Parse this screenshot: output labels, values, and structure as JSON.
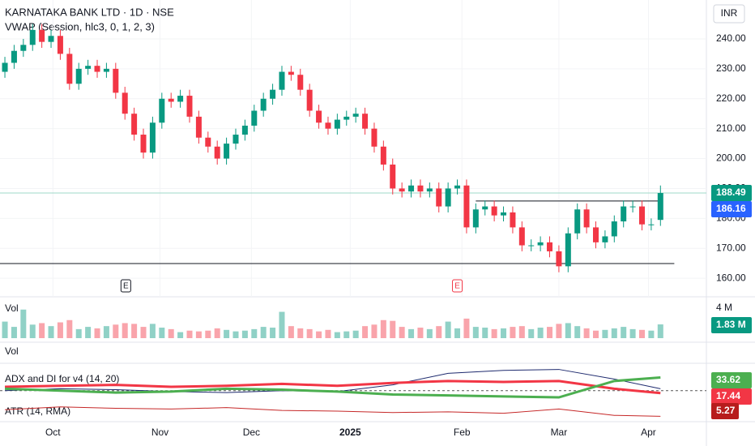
{
  "chart_data": {
    "type": "candlestick",
    "title": "KARNATAKA BANK LTD · 1D · NSE",
    "subtitle": "VWAP (Session, hlc3, 0, 1, 2, 3)",
    "currency": "INR",
    "up_color": "#089981",
    "down_color": "#f23645",
    "open": [
      229,
      232,
      236,
      238,
      243,
      239,
      241,
      235,
      225,
      230,
      231,
      229,
      230,
      222,
      215,
      208,
      202,
      212,
      220,
      219,
      221,
      214,
      207,
      204,
      200,
      205,
      208,
      211,
      216,
      220,
      223,
      229,
      228,
      223,
      216,
      212,
      210,
      213,
      214,
      215,
      210,
      204,
      198,
      190,
      189,
      191,
      189,
      190,
      184,
      190,
      191,
      177,
      183,
      184,
      181,
      182,
      177,
      171,
      171,
      172,
      169,
      164,
      175,
      183,
      177,
      172,
      174,
      179,
      184,
      184,
      178,
      179.5
    ],
    "high": [
      234,
      238,
      240,
      245,
      245,
      243,
      243,
      237,
      232,
      233,
      233,
      232,
      232,
      224,
      217,
      210,
      214,
      222,
      222,
      223,
      223,
      216,
      209,
      206,
      207,
      210,
      213,
      218,
      222,
      225,
      231,
      231,
      230,
      225,
      218,
      214,
      215,
      216,
      217,
      217,
      212,
      206,
      200,
      192,
      193,
      193,
      192,
      192,
      192,
      193,
      193,
      185,
      186,
      186,
      184,
      184,
      179,
      173,
      174,
      174,
      171,
      177,
      185,
      185,
      179,
      176,
      181,
      186,
      186,
      186,
      180,
      191
    ],
    "low": [
      227,
      230,
      234,
      236,
      237,
      237,
      233,
      223,
      223,
      228,
      227,
      227,
      220,
      213,
      206,
      200,
      200,
      210,
      217,
      217,
      212,
      205,
      202,
      198,
      198,
      203,
      206,
      209,
      214,
      218,
      221,
      226,
      221,
      214,
      210,
      208,
      208,
      211,
      212,
      208,
      202,
      196,
      188,
      187,
      187,
      187,
      187,
      182,
      182,
      188,
      175,
      175,
      181,
      179,
      179,
      175,
      169,
      169,
      169,
      167,
      162,
      162,
      173,
      175,
      170,
      170,
      172,
      177,
      182,
      176,
      176,
      177.5
    ],
    "close": [
      232,
      236,
      238,
      243,
      239,
      241,
      235,
      225,
      230,
      231,
      229,
      230,
      222,
      215,
      208,
      202,
      212,
      220,
      219,
      221,
      214,
      207,
      204,
      200,
      205,
      208,
      211,
      216,
      220,
      223,
      229,
      228,
      223,
      216,
      212,
      210,
      213,
      214,
      215,
      210,
      204,
      198,
      190,
      189,
      191,
      189,
      190,
      184,
      190,
      191,
      177,
      183,
      184,
      181,
      182,
      177,
      171,
      171,
      172,
      169,
      164,
      175,
      183,
      177,
      172,
      174,
      179,
      184,
      184,
      178,
      178,
      188.49
    ],
    "ylim": [
      153.8,
      253.0
    ],
    "yticks": [
      {
        "value": 240,
        "label": "240.00"
      },
      {
        "value": 230,
        "label": "230.00"
      },
      {
        "value": 220,
        "label": "220.00"
      },
      {
        "value": 210,
        "label": "210.00"
      },
      {
        "value": 200,
        "label": "200.00"
      },
      {
        "value": 190,
        "label": "190.00"
      },
      {
        "value": 180,
        "label": "180.00"
      },
      {
        "value": 170,
        "label": "170.00"
      },
      {
        "value": 160,
        "label": "160.00"
      }
    ],
    "xlim": [
      -0.53,
      75.8
    ],
    "xticks": [
      {
        "value": 5.2,
        "label": "Oct"
      },
      {
        "value": 16.8,
        "label": "Nov"
      },
      {
        "value": 26.7,
        "label": "Dec"
      },
      {
        "value": 37.4,
        "label": "2025"
      },
      {
        "value": 49.5,
        "label": "Feb"
      },
      {
        "value": 60,
        "label": "Mar"
      },
      {
        "value": 69.7,
        "label": "Apr"
      }
    ],
    "last_price": 188.49,
    "vwap": 186.16,
    "lines": [
      {
        "from": 51,
        "to": 71,
        "value": 185.8
      },
      {
        "from": -0.53,
        "to": 72.5,
        "value": 164.9
      }
    ],
    "earnings": [
      {
        "value": 13.1,
        "label": "E"
      },
      {
        "value": 49,
        "label": "E"
      }
    ],
    "volume": {
      "label": "Vol",
      "ylim": [
        0,
        5.5
      ],
      "yticks": [
        {
          "value": 4,
          "label": "4 M"
        }
      ],
      "last_label": "1.83 M",
      "values": [
        2.2,
        1.5,
        3.8,
        1.8,
        2.0,
        1.6,
        2.1,
        2.4,
        1.2,
        1.5,
        1.3,
        1.6,
        1.8,
        2.0,
        1.9,
        1.5,
        1.9,
        1.4,
        1.2,
        0.8,
        1.0,
        0.9,
        1.0,
        1.3,
        1.1,
        0.9,
        1.0,
        1.2,
        1.5,
        1.4,
        3.5,
        1.6,
        1.3,
        1.2,
        0.9,
        1.1,
        0.8,
        0.9,
        1.0,
        1.6,
        1.8,
        2.4,
        2.3,
        1.5,
        1.2,
        1.4,
        1.2,
        1.6,
        2.2,
        1.3,
        2.6,
        1.5,
        1.4,
        1.2,
        1.3,
        1.5,
        1.6,
        1.2,
        1.4,
        1.5,
        1.9,
        2.0,
        1.6,
        1.3,
        1.0,
        1.1,
        1.3,
        1.5,
        1.2,
        1.1,
        1.0,
        1.83
      ]
    },
    "volume2_label": "Vol",
    "adx": {
      "label": "ADX and DI for v4 (14, 20)",
      "ylim": [
        8,
        45
      ],
      "threshold": 20,
      "x": [
        0,
        6,
        12,
        18,
        24,
        30,
        36,
        42,
        48,
        54,
        60,
        66,
        71
      ],
      "series": [
        {
          "color": "#1e2a6e",
          "values": [
            20,
            22,
            21,
            19,
            18,
            20,
            19,
            26,
            38,
            41,
            42,
            32,
            22
          ]
        },
        {
          "color": "#f23645",
          "values": [
            24,
            25,
            26,
            24,
            25,
            27,
            25,
            28,
            30,
            29,
            30,
            22,
            17.44
          ]
        },
        {
          "color": "#4caf50",
          "values": [
            22,
            20,
            18,
            19,
            22,
            21,
            19,
            16,
            15,
            14,
            13,
            30,
            33.62
          ]
        }
      ]
    },
    "atr": {
      "label": "ATR (14, RMA)",
      "ylim": [
        4.5,
        7.5
      ],
      "color": "#c62828",
      "x": [
        0,
        6,
        12,
        18,
        24,
        30,
        36,
        42,
        48,
        54,
        60,
        66,
        71
      ],
      "values": [
        6.2,
        6.6,
        6.4,
        6.3,
        6.5,
        6.1,
        6.0,
        5.8,
        5.9,
        5.7,
        6.3,
        5.4,
        5.27
      ]
    }
  }
}
